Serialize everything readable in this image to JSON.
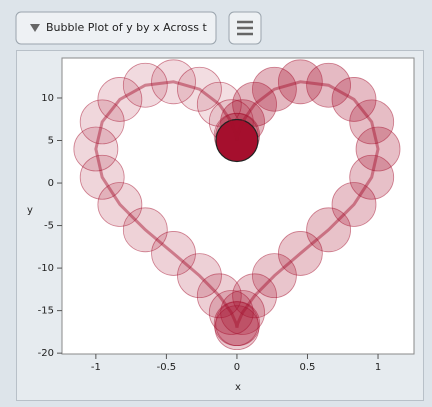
{
  "chart_data": {
    "type": "bubble",
    "title": "Bubble Plot of y by x Across t",
    "x_label": "x",
    "y_label": "y",
    "x": [
      0,
      0.00523,
      0.04,
      0.125,
      0.2656,
      0.4495,
      0.6495,
      0.8298,
      0.9551,
      1,
      0.9551,
      0.8298,
      0.6495,
      0.4495,
      0.2656,
      0.125,
      0.04,
      0.00523,
      0,
      -0.00523,
      -0.04,
      -0.125,
      -0.2656,
      -0.4495,
      -0.6495,
      -0.8298,
      -0.9551,
      -1,
      -0.9551,
      -0.8298,
      -0.6495,
      -0.4495,
      -0.2656,
      -0.125,
      -0.04,
      -0.00523
    ],
    "values": [
      5,
      5.61,
      7.21,
      9.26,
      11.03,
      11.9,
      11.5,
      9.83,
      7.19,
      4,
      0.68,
      -2.52,
      -5.5,
      -8.28,
      -10.89,
      -13.26,
      -15.22,
      -16.53,
      -17,
      -16.53,
      -15.22,
      -13.26,
      -10.89,
      -8.28,
      -5.5,
      -2.52,
      0.68,
      4,
      7.19,
      9.83,
      11.5,
      11.9,
      11.03,
      9.26,
      7.21,
      5.61
    ],
    "color": "#a50f2d",
    "xlim": [
      -1.24,
      1.255
    ],
    "ylim": [
      -20.1,
      14.7
    ],
    "xticks": [
      -1,
      -0.5,
      0,
      0.5,
      1
    ],
    "yticks": [
      -20,
      -15,
      -10,
      -5,
      0,
      5,
      10
    ]
  }
}
